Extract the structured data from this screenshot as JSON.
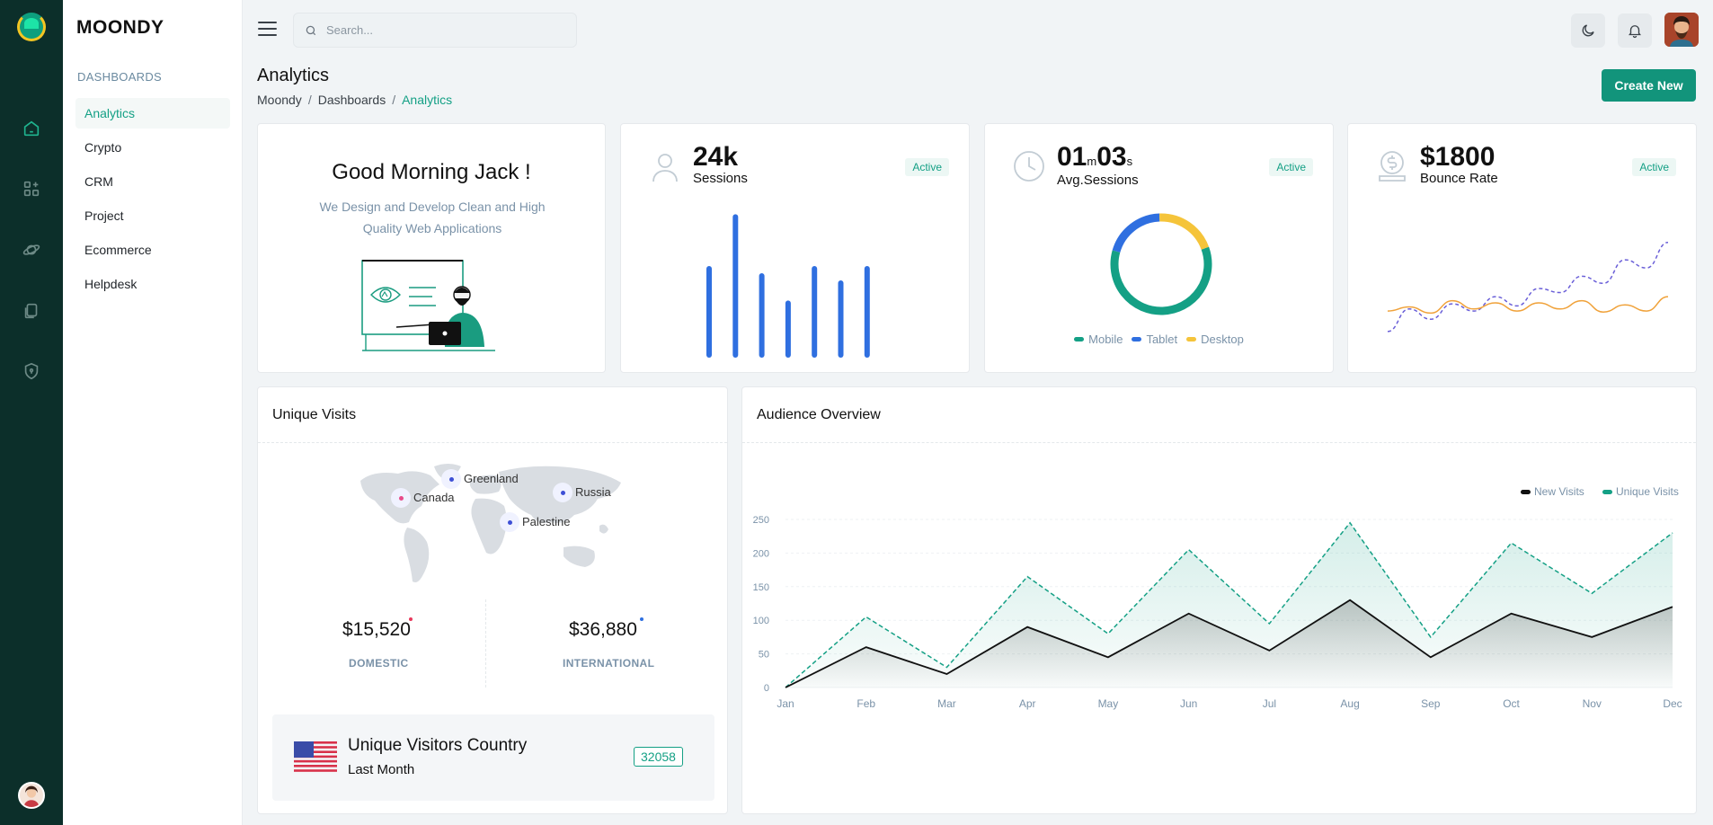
{
  "brand": "MOONDY",
  "sidebar": {
    "section": "DASHBOARDS",
    "items": [
      {
        "label": "Analytics"
      },
      {
        "label": "Crypto"
      },
      {
        "label": "CRM"
      },
      {
        "label": "Project"
      },
      {
        "label": "Ecommerce"
      },
      {
        "label": "Helpdesk"
      }
    ]
  },
  "search": {
    "placeholder": "Search..."
  },
  "page": {
    "title": "Analytics",
    "breadcrumb": [
      "Moondy",
      "Dashboards",
      "Analytics"
    ],
    "create_label": "Create New"
  },
  "greeting": {
    "title": "Good Morning Jack !",
    "text": "We Design and Develop Clean and High Quality Web Applications"
  },
  "stats": {
    "sessions": {
      "value": "24k",
      "label": "Sessions",
      "badge": "Active"
    },
    "avg": {
      "min": "01",
      "min_unit": "m",
      "sec": "03",
      "sec_unit": "s",
      "label": "Avg.Sessions",
      "badge": "Active"
    },
    "bounce": {
      "value": "$1800",
      "label": "Bounce Rate",
      "badge": "Active"
    }
  },
  "sessions_bars": [
    0.6,
    0.96,
    0.55,
    0.36,
    0.6,
    0.5,
    0.6
  ],
  "avg_donut": {
    "legend": [
      {
        "name": "Mobile",
        "color": "#14a085",
        "value": 60
      },
      {
        "name": "Tablet",
        "color": "#2f6fe0",
        "value": 20
      },
      {
        "name": "Desktop",
        "color": "#f5c43a",
        "value": 20
      }
    ]
  },
  "bounce_lines": {
    "purple": [
      0.08,
      0.3,
      0.2,
      0.35,
      0.28,
      0.42,
      0.33,
      0.5,
      0.46,
      0.62,
      0.55,
      0.78,
      0.7,
      0.95
    ],
    "orange": [
      0.28,
      0.32,
      0.26,
      0.38,
      0.3,
      0.36,
      0.28,
      0.36,
      0.3,
      0.38,
      0.27,
      0.34,
      0.28,
      0.42
    ]
  },
  "unique_visits": {
    "title": "Unique Visits",
    "markers": [
      {
        "label": "Greenland",
        "color": "#3d4fd6"
      },
      {
        "label": "Canada",
        "color": "#e84a8a"
      },
      {
        "label": "Russia",
        "color": "#3d4fd6"
      },
      {
        "label": "Palestine",
        "color": "#3d4fd6"
      }
    ],
    "domestic": {
      "value": "$15,520",
      "label": "DOMESTIC",
      "dot": "#e8385b"
    },
    "international": {
      "value": "$36,880",
      "label": "INTERNATIONAL",
      "dot": "#2f6fe0"
    },
    "country": {
      "title": "Unique Visitors Country",
      "subtitle": "Last Month",
      "count": "32058"
    }
  },
  "chart_data": {
    "type": "area",
    "title": "Audience Overview",
    "categories": [
      "Jan",
      "Feb",
      "Mar",
      "Apr",
      "May",
      "Jun",
      "Jul",
      "Aug",
      "Sep",
      "Oct",
      "Nov",
      "Dec"
    ],
    "yticks": [
      0,
      50,
      100,
      150,
      200,
      250
    ],
    "ylim": [
      0,
      250
    ],
    "legend_position": "top-right",
    "series": [
      {
        "name": "New Visits",
        "color": "#111111",
        "dash": false,
        "values": [
          0,
          60,
          20,
          90,
          45,
          110,
          55,
          130,
          45,
          110,
          75,
          120
        ]
      },
      {
        "name": "Unique Visits",
        "color": "#14a085",
        "dash": true,
        "values": [
          0,
          105,
          30,
          165,
          80,
          205,
          95,
          245,
          75,
          215,
          140,
          230
        ]
      }
    ]
  }
}
